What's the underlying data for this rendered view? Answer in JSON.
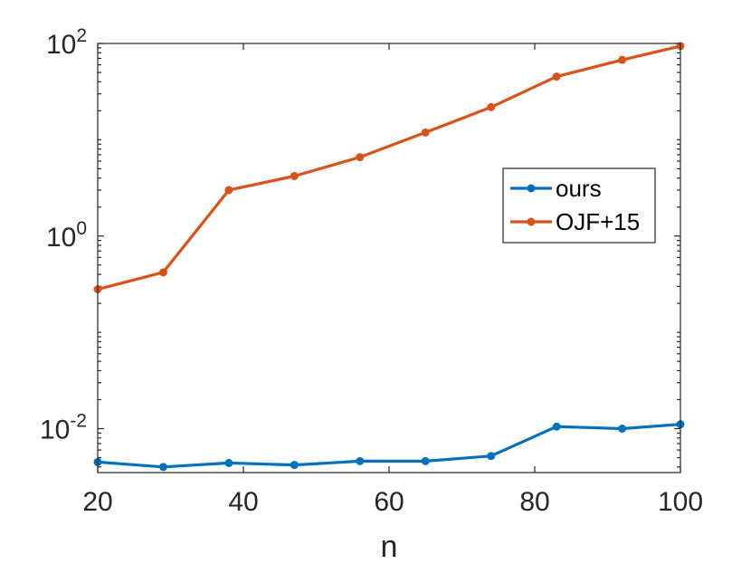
{
  "chart_data": {
    "type": "line",
    "title": "",
    "xlabel": "n",
    "ylabel": "",
    "x_scale": "linear",
    "y_scale": "log",
    "xlim": [
      20,
      100
    ],
    "ylim": [
      0.0035,
      100
    ],
    "x_ticks": [
      20,
      40,
      60,
      80,
      100
    ],
    "x_tick_labels": [
      "20",
      "40",
      "60",
      "80",
      "100"
    ],
    "y_ticks": [
      0.01,
      1,
      100
    ],
    "y_tick_labels": [
      {
        "base": "10",
        "exp": "-2"
      },
      {
        "base": "10",
        "exp": "0"
      },
      {
        "base": "10",
        "exp": "2"
      }
    ],
    "grid": false,
    "legend_position": "right",
    "x": [
      20,
      29,
      38,
      47,
      56,
      65,
      74,
      83,
      92,
      100
    ],
    "series": [
      {
        "name": "ours",
        "color": "#0072BD",
        "values": [
          0.0045,
          0.004,
          0.0044,
          0.0042,
          0.0046,
          0.0046,
          0.0052,
          0.0105,
          0.01,
          0.0111
        ]
      },
      {
        "name": "OJF+15",
        "color": "#D95319",
        "values": [
          0.28,
          0.42,
          3.0,
          4.2,
          6.6,
          11.9,
          21.8,
          45.3,
          67.5,
          94.0
        ]
      }
    ]
  }
}
